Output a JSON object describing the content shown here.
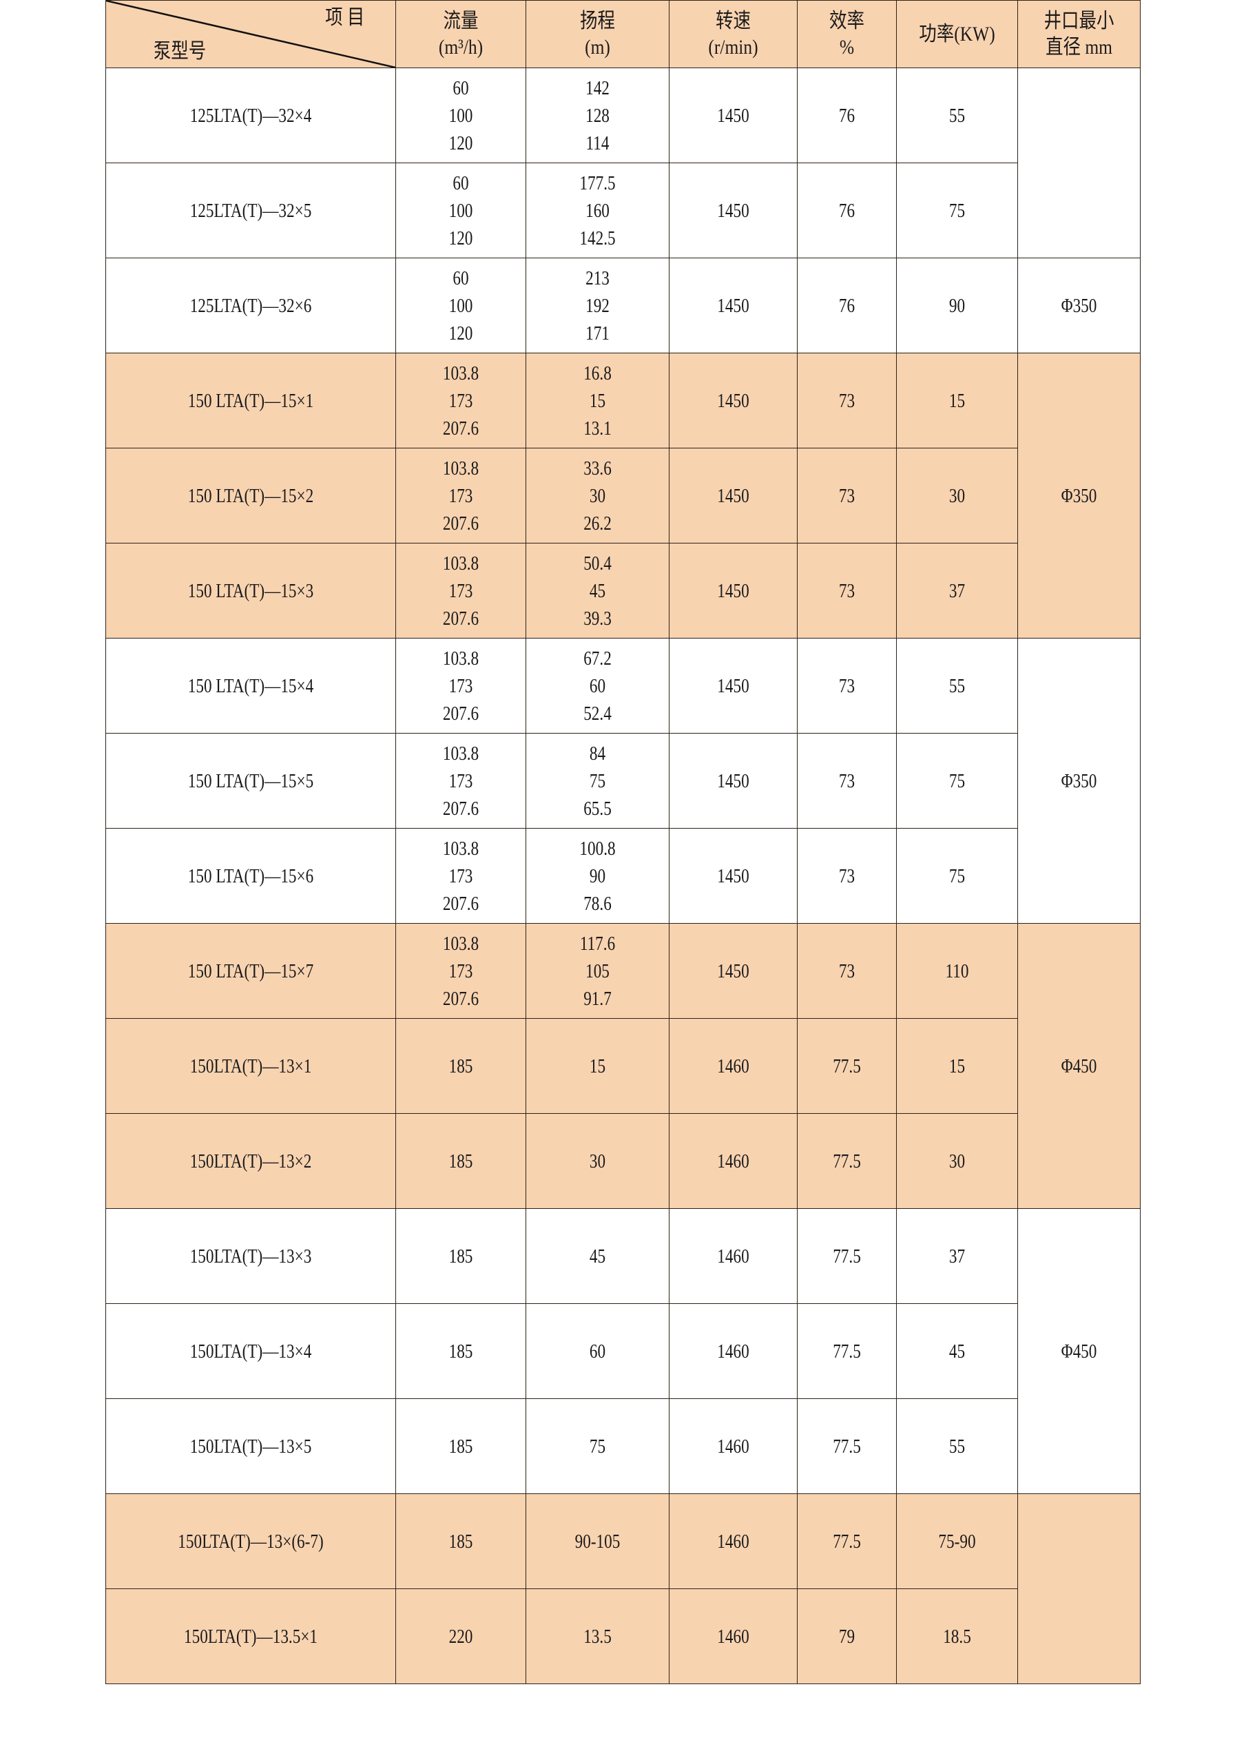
{
  "header": {
    "item_label": "项 目",
    "model_label": "泵型号",
    "flow": [
      "流量",
      "(m³/h)"
    ],
    "head": [
      "扬程",
      "(m)"
    ],
    "speed": [
      "转速",
      "(r/min)"
    ],
    "efficiency": [
      "效率",
      "%"
    ],
    "power": [
      "功率(KW)"
    ],
    "diameter": [
      "井口最小",
      "直径 mm"
    ]
  },
  "colors": {
    "highlight": "#f8d3b0",
    "plain": "#ffffff",
    "border": "#2b2118"
  },
  "rows": [
    {
      "model": "125LTA(T)—32×4",
      "flow": [
        "60",
        "100",
        "120"
      ],
      "head": [
        "142",
        "128",
        "114"
      ],
      "speed": "1450",
      "efficiency": "76",
      "power": "55",
      "shade": "plain"
    },
    {
      "model": "125LTA(T)—32×5",
      "flow": [
        "60",
        "100",
        "120"
      ],
      "head": [
        "177.5",
        "160",
        "142.5"
      ],
      "speed": "1450",
      "efficiency": "76",
      "power": "75",
      "shade": "plain"
    },
    {
      "model": "125LTA(T)—32×6",
      "flow": [
        "60",
        "100",
        "120"
      ],
      "head": [
        "213",
        "192",
        "171"
      ],
      "speed": "1450",
      "efficiency": "76",
      "power": "90",
      "shade": "plain"
    },
    {
      "model": "150 LTA(T)—15×1",
      "flow": [
        "103.8",
        "173",
        "207.6"
      ],
      "head": [
        "16.8",
        "15",
        "13.1"
      ],
      "speed": "1450",
      "efficiency": "73",
      "power": "15",
      "shade": "highlight"
    },
    {
      "model": "150 LTA(T)—15×2",
      "flow": [
        "103.8",
        "173",
        "207.6"
      ],
      "head": [
        "33.6",
        "30",
        "26.2"
      ],
      "speed": "1450",
      "efficiency": "73",
      "power": "30",
      "shade": "highlight"
    },
    {
      "model": "150 LTA(T)—15×3",
      "flow": [
        "103.8",
        "173",
        "207.6"
      ],
      "head": [
        "50.4",
        "45",
        "39.3"
      ],
      "speed": "1450",
      "efficiency": "73",
      "power": "37",
      "shade": "highlight"
    },
    {
      "model": "150 LTA(T)—15×4",
      "flow": [
        "103.8",
        "173",
        "207.6"
      ],
      "head": [
        "67.2",
        "60",
        "52.4"
      ],
      "speed": "1450",
      "efficiency": "73",
      "power": "55",
      "shade": "plain"
    },
    {
      "model": "150 LTA(T)—15×5",
      "flow": [
        "103.8",
        "173",
        "207.6"
      ],
      "head": [
        "84",
        "75",
        "65.5"
      ],
      "speed": "1450",
      "efficiency": "73",
      "power": "75",
      "shade": "plain"
    },
    {
      "model": "150 LTA(T)—15×6",
      "flow": [
        "103.8",
        "173",
        "207.6"
      ],
      "head": [
        "100.8",
        "90",
        "78.6"
      ],
      "speed": "1450",
      "efficiency": "73",
      "power": "75",
      "shade": "plain"
    },
    {
      "model": "150 LTA(T)—15×7",
      "flow": [
        "103.8",
        "173",
        "207.6"
      ],
      "head": [
        "117.6",
        "105",
        "91.7"
      ],
      "speed": "1450",
      "efficiency": "73",
      "power": "110",
      "shade": "highlight"
    },
    {
      "model": "150LTA(T)—13×1",
      "flow": [
        "185"
      ],
      "head": [
        "15"
      ],
      "speed": "1460",
      "efficiency": "77.5",
      "power": "15",
      "shade": "highlight"
    },
    {
      "model": "150LTA(T)—13×2",
      "flow": [
        "185"
      ],
      "head": [
        "30"
      ],
      "speed": "1460",
      "efficiency": "77.5",
      "power": "30",
      "shade": "highlight"
    },
    {
      "model": "150LTA(T)—13×3",
      "flow": [
        "185"
      ],
      "head": [
        "45"
      ],
      "speed": "1460",
      "efficiency": "77.5",
      "power": "37",
      "shade": "plain"
    },
    {
      "model": "150LTA(T)—13×4",
      "flow": [
        "185"
      ],
      "head": [
        "60"
      ],
      "speed": "1460",
      "efficiency": "77.5",
      "power": "45",
      "shade": "plain"
    },
    {
      "model": "150LTA(T)—13×5",
      "flow": [
        "185"
      ],
      "head": [
        "75"
      ],
      "speed": "1460",
      "efficiency": "77.5",
      "power": "55",
      "shade": "plain"
    },
    {
      "model": "150LTA(T)—13×(6-7)",
      "flow": [
        "185"
      ],
      "head": [
        "90-105"
      ],
      "speed": "1460",
      "efficiency": "77.5",
      "power": "75-90",
      "shade": "highlight"
    },
    {
      "model": "150LTA(T)—13.5×1",
      "flow": [
        "220"
      ],
      "head": [
        "13.5"
      ],
      "speed": "1460",
      "efficiency": "79",
      "power": "18.5",
      "shade": "highlight"
    }
  ],
  "diameter_groups": [
    {
      "start": 0,
      "span": 2,
      "value": "",
      "shade": "plain"
    },
    {
      "start": 2,
      "span": 1,
      "value": "Φ350",
      "shade": "plain"
    },
    {
      "start": 3,
      "span": 3,
      "value": "Φ350",
      "shade": "highlight"
    },
    {
      "start": 6,
      "span": 3,
      "value": "Φ350",
      "shade": "plain"
    },
    {
      "start": 9,
      "span": 3,
      "value": "Φ450",
      "shade": "highlight"
    },
    {
      "start": 12,
      "span": 3,
      "value": "Φ450",
      "shade": "plain"
    },
    {
      "start": 15,
      "span": 2,
      "value": "",
      "shade": "highlight"
    }
  ]
}
